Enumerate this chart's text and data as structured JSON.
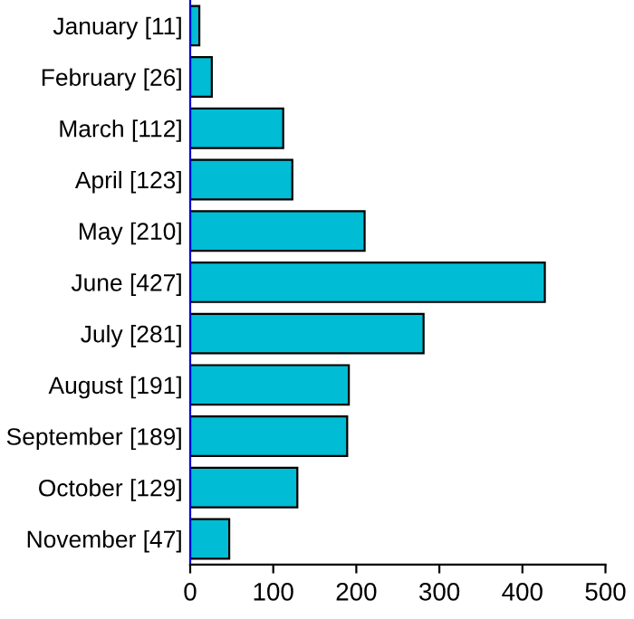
{
  "chart_data": {
    "type": "bar",
    "orientation": "horizontal",
    "categories": [
      "January [11]",
      "February [26]",
      "March [112]",
      "April [123]",
      "May [210]",
      "June [427]",
      "July [281]",
      "August [191]",
      "September [189]",
      "October [129]",
      "November [47]"
    ],
    "values": [
      11,
      26,
      112,
      123,
      210,
      427,
      281,
      191,
      189,
      129,
      47
    ],
    "color": "#00bcd4",
    "xlim": [
      0,
      500
    ],
    "xticks": [
      0,
      100,
      200,
      300,
      400,
      500
    ],
    "grid": false
  }
}
